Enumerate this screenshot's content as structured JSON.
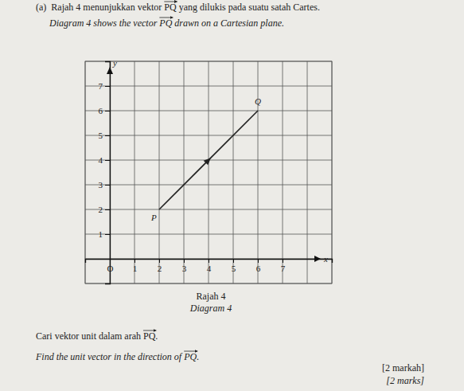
{
  "document": {
    "intro_ms": {
      "before": "(a)  Rajah 4 menunjukkan vektor ",
      "vector": "PQ",
      "after": " yang dilukis pada suatu satah Cartes."
    },
    "intro_en": {
      "before": "Diagram 4 shows the vector ",
      "vector": "PQ",
      "after": " drawn on a Cartesian plane."
    },
    "caption_ms": "Rajah 4",
    "caption_en": "Diagram 4",
    "question_ms": {
      "before": "Cari vektor unit dalam arah ",
      "vector": "PQ",
      "after": "."
    },
    "question_en": {
      "before": "Find the unit vector in the direction of ",
      "vector": "PQ",
      "after": "."
    },
    "marks_ms": "[2 markah]",
    "marks_en": "[2 marks]"
  },
  "chart_data": {
    "type": "line",
    "x_label": "x",
    "y_label": "y",
    "x": [
      2,
      6
    ],
    "values": [
      2,
      6
    ],
    "point_labels": [
      "P",
      "Q"
    ],
    "color": "#222222",
    "xlim": [
      -1,
      9
    ],
    "ylim": [
      -1,
      8
    ],
    "xticks": [
      {
        "value": 0,
        "label": "O"
      },
      1,
      2,
      3,
      4,
      5,
      6,
      7
    ],
    "yticks": [
      1,
      2,
      3,
      4,
      5,
      6,
      7
    ],
    "grid": true
  }
}
